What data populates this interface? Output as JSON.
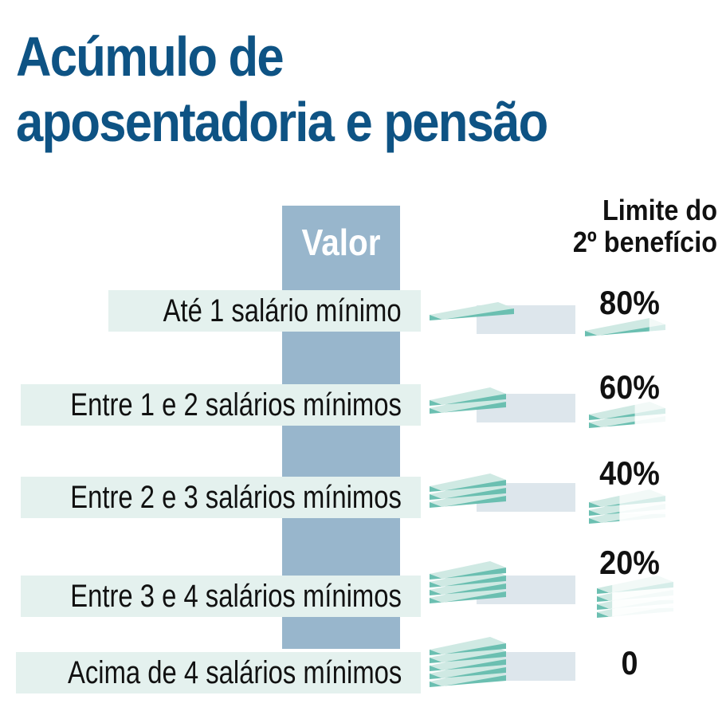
{
  "title": {
    "line1": "Acúmulo de",
    "line2": "aposentadoria e pensão"
  },
  "column_header": "Valor",
  "limit_header": {
    "line1": "Limite do",
    "line2": "2º benefício"
  },
  "rows": [
    {
      "label": "Até 1 salário mínimo",
      "limit": "80%"
    },
    {
      "label": "Entre 1 e 2 salários mínimos",
      "limit": "60%"
    },
    {
      "label": "Entre 2 e 3 salários mínimos",
      "limit": "40%"
    },
    {
      "label": "Entre 3 e 4 salários mínimos",
      "limit": "20%"
    },
    {
      "label": "Acima de 4 salários mínimos",
      "limit": "0"
    }
  ],
  "colors": {
    "title": "#0e5384",
    "valor_column": "#98b6cc",
    "row_band": "#e4f1ee",
    "bill_top": "#cfe9e3",
    "bill_edge": "#6bbfb1"
  }
}
